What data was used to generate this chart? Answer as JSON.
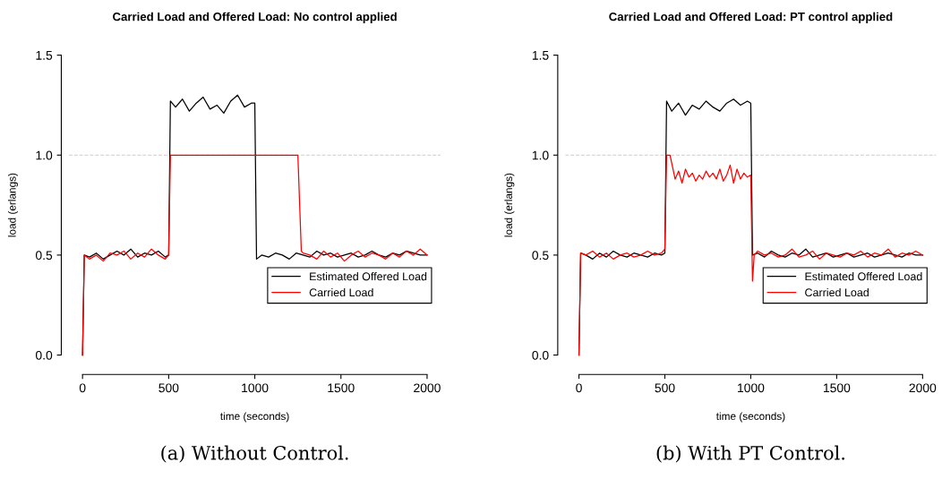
{
  "chart_data": [
    {
      "type": "line",
      "title": "Carried Load and Offered Load: No control applied",
      "xlabel": "time (seconds)",
      "ylabel": "load (erlangs)",
      "annotations": [
        "(a) Without Control."
      ],
      "xlim": [
        0,
        2000
      ],
      "ylim": [
        0,
        1.5
      ],
      "xticks": [
        0,
        500,
        1000,
        1500,
        2000
      ],
      "yticks": [
        {
          "value": 0,
          "label": "0.0"
        },
        {
          "value": 0.5,
          "label": "0.5"
        },
        {
          "value": 1.0,
          "label": "1.0"
        },
        {
          "value": 1.5,
          "label": "1.5"
        }
      ],
      "ref_lines": [
        {
          "axis": "y",
          "value": 1.0,
          "color": "#cccccc",
          "line_style": "dashed"
        }
      ],
      "legend": "bottom right",
      "grid": false,
      "marker": "none",
      "line_style": "solid",
      "series": [
        {
          "name": "Estimated Offered Load",
          "color": "#000000",
          "x": [
            0,
            10,
            40,
            80,
            120,
            160,
            200,
            240,
            280,
            320,
            360,
            400,
            440,
            480,
            500,
            510,
            540,
            580,
            620,
            660,
            700,
            740,
            780,
            820,
            860,
            900,
            940,
            980,
            1000,
            1010,
            1040,
            1080,
            1120,
            1160,
            1200,
            1240,
            1280,
            1320,
            1360,
            1400,
            1440,
            1480,
            1520,
            1560,
            1600,
            1640,
            1680,
            1720,
            1760,
            1800,
            1840,
            1880,
            1920,
            1960,
            2000
          ],
          "values": [
            0,
            0.5,
            0.49,
            0.51,
            0.48,
            0.5,
            0.52,
            0.5,
            0.53,
            0.49,
            0.51,
            0.5,
            0.52,
            0.49,
            0.5,
            1.27,
            1.24,
            1.28,
            1.22,
            1.26,
            1.29,
            1.23,
            1.25,
            1.21,
            1.27,
            1.3,
            1.24,
            1.26,
            1.26,
            0.48,
            0.5,
            0.49,
            0.51,
            0.5,
            0.48,
            0.51,
            0.5,
            0.49,
            0.52,
            0.5,
            0.51,
            0.49,
            0.5,
            0.51,
            0.49,
            0.5,
            0.52,
            0.5,
            0.49,
            0.51,
            0.5,
            0.52,
            0.51,
            0.5,
            0.5
          ]
        },
        {
          "name": "Carried Load",
          "color": "#ff0000",
          "x": [
            0,
            10,
            40,
            80,
            120,
            160,
            200,
            240,
            280,
            320,
            360,
            400,
            440,
            480,
            500,
            510,
            1250,
            1270,
            1280,
            1320,
            1360,
            1400,
            1440,
            1480,
            1520,
            1560,
            1600,
            1640,
            1680,
            1720,
            1760,
            1800,
            1840,
            1880,
            1920,
            1960,
            2000
          ],
          "values": [
            0,
            0.5,
            0.48,
            0.5,
            0.47,
            0.51,
            0.5,
            0.52,
            0.48,
            0.51,
            0.49,
            0.53,
            0.5,
            0.48,
            0.5,
            1.0,
            1.0,
            0.52,
            0.51,
            0.5,
            0.48,
            0.52,
            0.49,
            0.51,
            0.47,
            0.5,
            0.52,
            0.49,
            0.51,
            0.5,
            0.48,
            0.51,
            0.49,
            0.52,
            0.5,
            0.53,
            0.5
          ]
        }
      ]
    },
    {
      "type": "line",
      "title": "Carried Load and Offered Load: PT control applied",
      "xlabel": "time (seconds)",
      "ylabel": "load (erlangs)",
      "annotations": [
        "(b) With PT Control."
      ],
      "xlim": [
        0,
        2000
      ],
      "ylim": [
        0,
        1.5
      ],
      "xticks": [
        0,
        500,
        1000,
        1500,
        2000
      ],
      "yticks": [
        {
          "value": 0,
          "label": "0.0"
        },
        {
          "value": 0.5,
          "label": "0.5"
        },
        {
          "value": 1.0,
          "label": "1.0"
        },
        {
          "value": 1.5,
          "label": "1.5"
        }
      ],
      "ref_lines": [
        {
          "axis": "y",
          "value": 1.0,
          "color": "#cccccc",
          "line_style": "dashed"
        }
      ],
      "legend": "bottom right",
      "grid": false,
      "marker": "none",
      "line_style": "solid",
      "series": [
        {
          "name": "Estimated Offered Load",
          "color": "#000000",
          "x": [
            0,
            10,
            40,
            80,
            120,
            160,
            200,
            240,
            280,
            320,
            360,
            400,
            440,
            480,
            500,
            510,
            540,
            580,
            620,
            660,
            700,
            740,
            780,
            820,
            860,
            900,
            940,
            980,
            1000,
            1010,
            1040,
            1080,
            1120,
            1160,
            1200,
            1240,
            1280,
            1320,
            1360,
            1400,
            1440,
            1480,
            1520,
            1560,
            1600,
            1640,
            1680,
            1720,
            1760,
            1800,
            1840,
            1880,
            1920,
            1960,
            2000
          ],
          "values": [
            0,
            0.51,
            0.5,
            0.48,
            0.51,
            0.49,
            0.52,
            0.5,
            0.49,
            0.51,
            0.5,
            0.49,
            0.51,
            0.5,
            0.51,
            1.27,
            1.22,
            1.26,
            1.2,
            1.25,
            1.23,
            1.27,
            1.24,
            1.22,
            1.26,
            1.28,
            1.25,
            1.27,
            1.26,
            0.5,
            0.51,
            0.49,
            0.52,
            0.5,
            0.49,
            0.51,
            0.5,
            0.53,
            0.49,
            0.5,
            0.51,
            0.49,
            0.5,
            0.51,
            0.49,
            0.5,
            0.51,
            0.49,
            0.5,
            0.51,
            0.5,
            0.49,
            0.51,
            0.5,
            0.5
          ]
        },
        {
          "name": "Carried Load",
          "color": "#ff0000",
          "x": [
            0,
            10,
            40,
            80,
            120,
            160,
            200,
            240,
            280,
            320,
            360,
            400,
            440,
            480,
            500,
            510,
            530,
            560,
            580,
            600,
            620,
            640,
            660,
            680,
            700,
            720,
            740,
            760,
            780,
            800,
            820,
            840,
            860,
            880,
            900,
            920,
            940,
            960,
            980,
            1000,
            1010,
            1020,
            1040,
            1080,
            1120,
            1160,
            1200,
            1240,
            1280,
            1320,
            1360,
            1400,
            1440,
            1480,
            1520,
            1560,
            1600,
            1640,
            1680,
            1720,
            1760,
            1800,
            1840,
            1880,
            1920,
            1960,
            2000
          ],
          "values": [
            0,
            0.51,
            0.5,
            0.52,
            0.49,
            0.51,
            0.48,
            0.5,
            0.51,
            0.49,
            0.5,
            0.52,
            0.5,
            0.51,
            0.53,
            1.0,
            1.0,
            0.88,
            0.92,
            0.86,
            0.93,
            0.89,
            0.91,
            0.87,
            0.9,
            0.88,
            0.92,
            0.89,
            0.91,
            0.88,
            0.93,
            0.87,
            0.9,
            0.95,
            0.86,
            0.93,
            0.88,
            0.91,
            0.89,
            0.9,
            0.37,
            0.5,
            0.52,
            0.5,
            0.51,
            0.49,
            0.5,
            0.53,
            0.49,
            0.5,
            0.52,
            0.48,
            0.51,
            0.5,
            0.49,
            0.51,
            0.5,
            0.52,
            0.49,
            0.51,
            0.5,
            0.53,
            0.49,
            0.51,
            0.5,
            0.52,
            0.5
          ]
        }
      ]
    }
  ]
}
